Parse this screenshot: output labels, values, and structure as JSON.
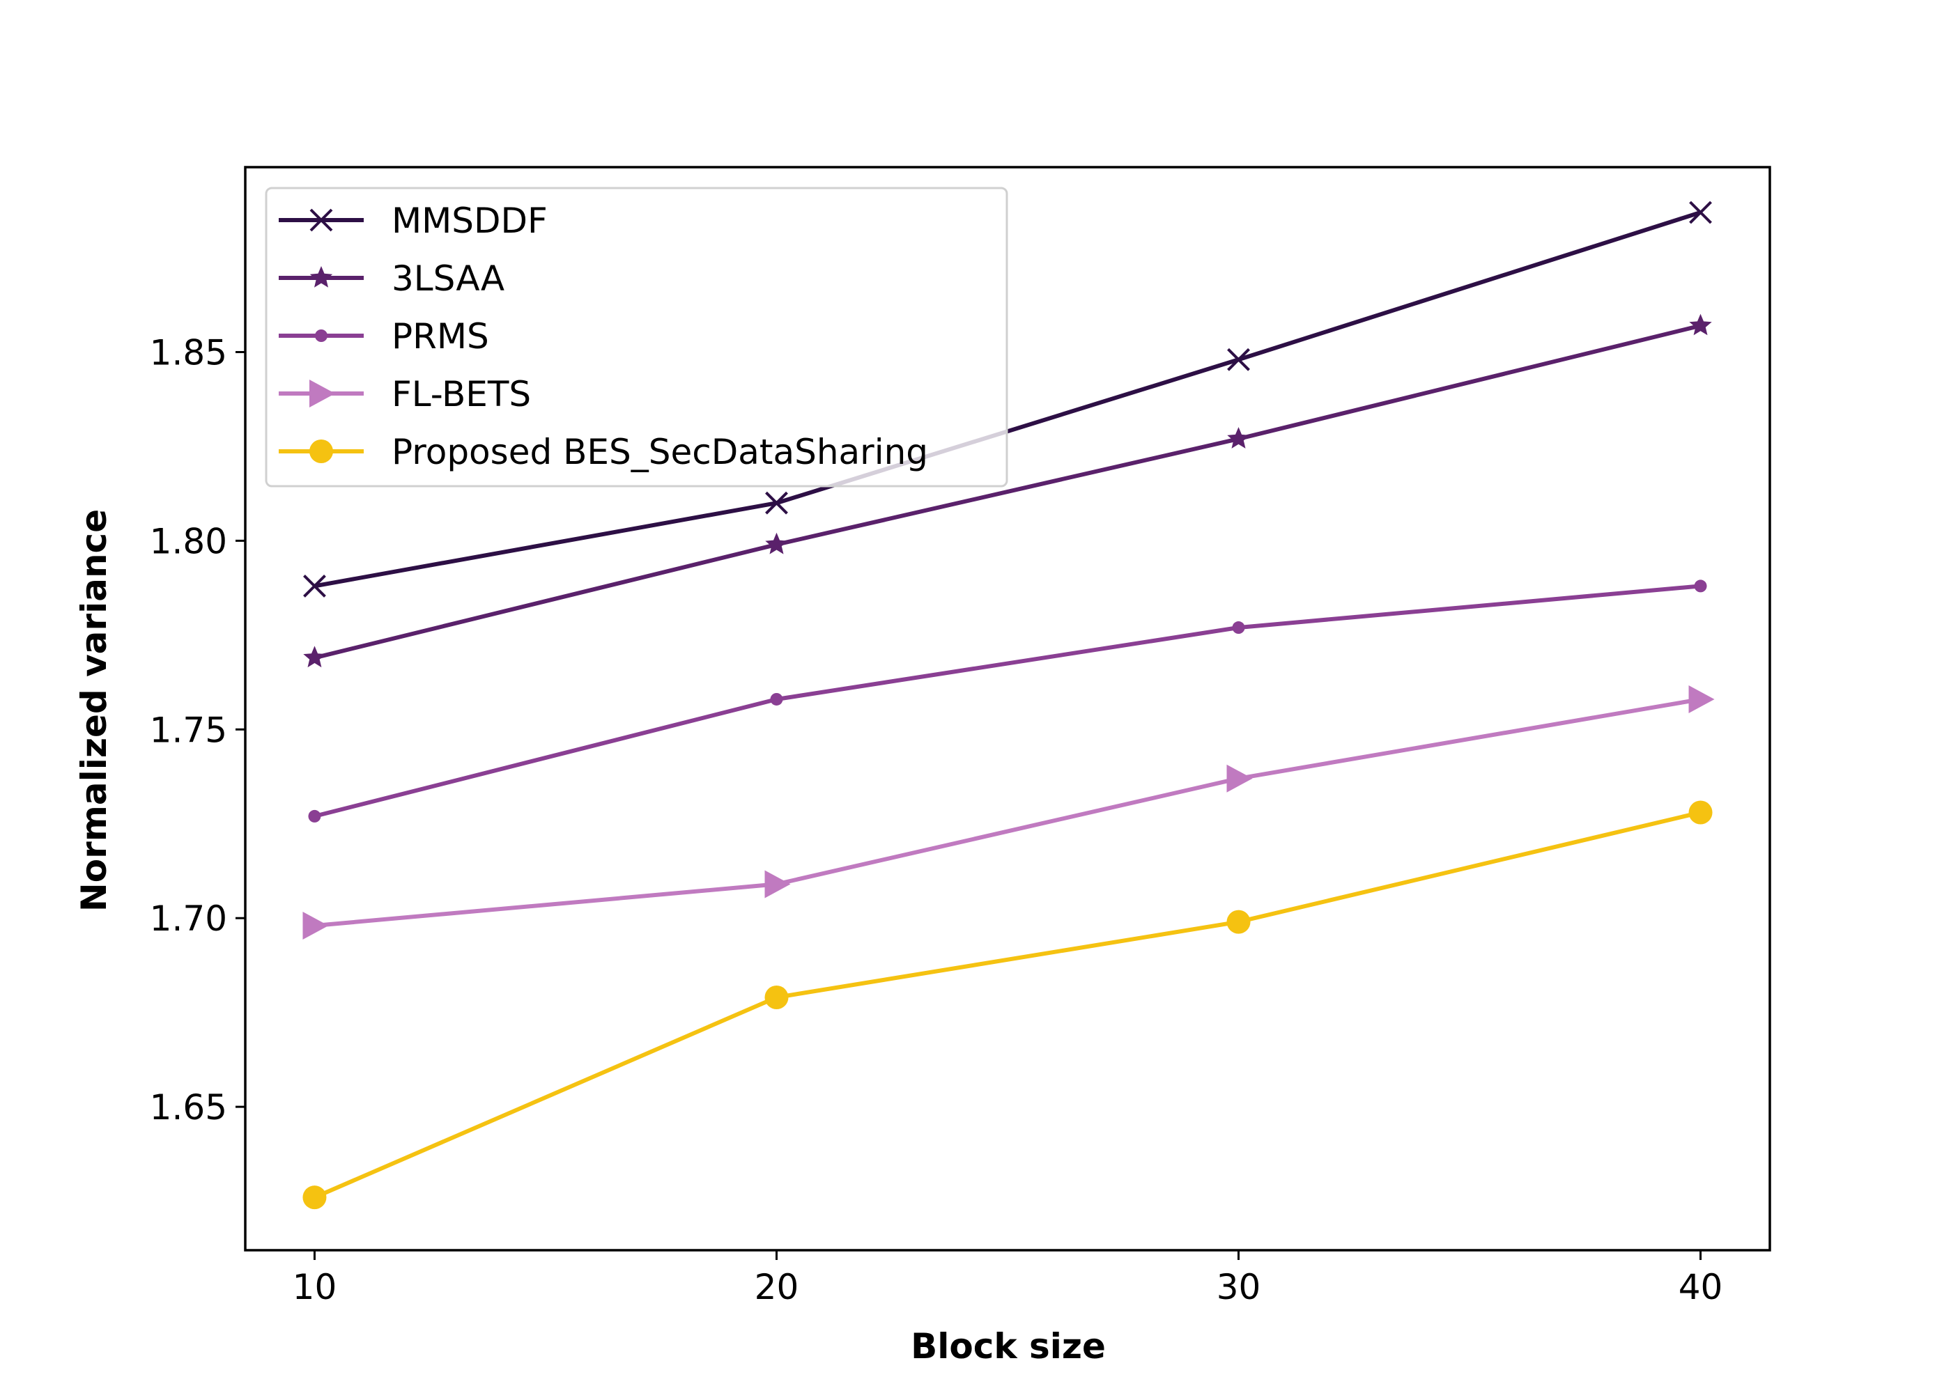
{
  "chart_data": {
    "type": "line",
    "title": "",
    "xlabel": "Block size",
    "ylabel": "Normalized variance",
    "x": [
      10,
      20,
      30,
      40
    ],
    "x_ticks": [
      "10",
      "20",
      "30",
      "40"
    ],
    "y_ticks": [
      "1.65",
      "1.70",
      "1.75",
      "1.80",
      "1.85"
    ],
    "xlim": [
      8.5,
      41.5
    ],
    "ylim": [
      1.612,
      1.899
    ],
    "grid": false,
    "legend_position": "top-left",
    "series": [
      {
        "name": "MMSDDF",
        "values": [
          1.788,
          1.81,
          1.848,
          1.887
        ],
        "color": "#2d0f45",
        "marker": "x"
      },
      {
        "name": "3LSAA",
        "values": [
          1.769,
          1.799,
          1.827,
          1.857
        ],
        "color": "#5a216b",
        "marker": "star"
      },
      {
        "name": "PRMS",
        "values": [
          1.727,
          1.758,
          1.777,
          1.788
        ],
        "color": "#8a3f93",
        "marker": "point"
      },
      {
        "name": "FL-BETS",
        "values": [
          1.698,
          1.709,
          1.737,
          1.758
        ],
        "color": "#c07ac0",
        "marker": "triangle-right"
      },
      {
        "name": "Proposed BES_SecDataSharing",
        "values": [
          1.626,
          1.679,
          1.699,
          1.728
        ],
        "color": "#f5c211",
        "marker": "circle"
      }
    ]
  }
}
